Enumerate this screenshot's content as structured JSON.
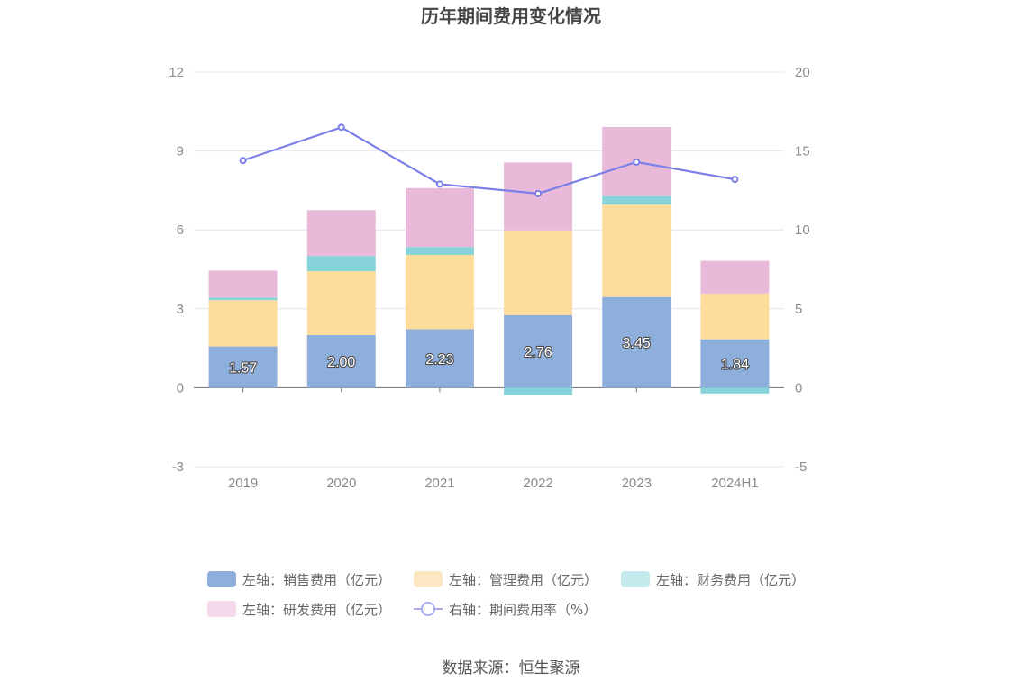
{
  "chart_data": {
    "type": "bar",
    "title": "历年期间费用变化情况",
    "categories": [
      "2019",
      "2020",
      "2021",
      "2022",
      "2023",
      "2024H1"
    ],
    "left_axis": {
      "ylim": [
        -3,
        12
      ],
      "ticks": [
        -3,
        0,
        3,
        6,
        9,
        12
      ]
    },
    "right_axis": {
      "ylim": [
        -5,
        20
      ],
      "ticks": [
        -5,
        0,
        5,
        10,
        15,
        20
      ]
    },
    "stacked": true,
    "series": [
      {
        "name": "左轴：销售费用（亿元）",
        "axis": "left",
        "type": "bar",
        "color": "#8eaedc",
        "values": [
          1.57,
          2.0,
          2.23,
          2.76,
          3.45,
          1.84
        ],
        "labels": [
          "1.57",
          "2.00",
          "2.23",
          "2.76",
          "3.45",
          "1.84"
        ]
      },
      {
        "name": "左轴：管理费用（亿元）",
        "axis": "left",
        "type": "bar",
        "color": "#fedc9c",
        "values": [
          1.76,
          2.43,
          2.82,
          3.22,
          3.51,
          1.74
        ]
      },
      {
        "name": "左轴：财务费用（亿元）",
        "axis": "left",
        "type": "bar",
        "color": "#86d3d9",
        "values": [
          0.1,
          0.58,
          0.3,
          -0.28,
          0.32,
          -0.22
        ]
      },
      {
        "name": "左轴：研发费用（亿元）",
        "axis": "left",
        "type": "bar",
        "color": "#e8b9d9",
        "values": [
          1.02,
          1.74,
          2.24,
          2.58,
          2.63,
          1.24
        ]
      },
      {
        "name": "右轴：期间费用率（%）",
        "axis": "right",
        "type": "line",
        "color": "#7b7fe8",
        "values": [
          14.4,
          16.5,
          12.9,
          12.3,
          14.3,
          13.2
        ]
      }
    ],
    "grid": true,
    "legend_position": "bottom"
  },
  "source": "数据来源：恒生聚源",
  "legend_colors": [
    "#8eaedc",
    "#fde7c2",
    "#c2eaec",
    "#f4d9ea",
    "#a9acf0"
  ]
}
